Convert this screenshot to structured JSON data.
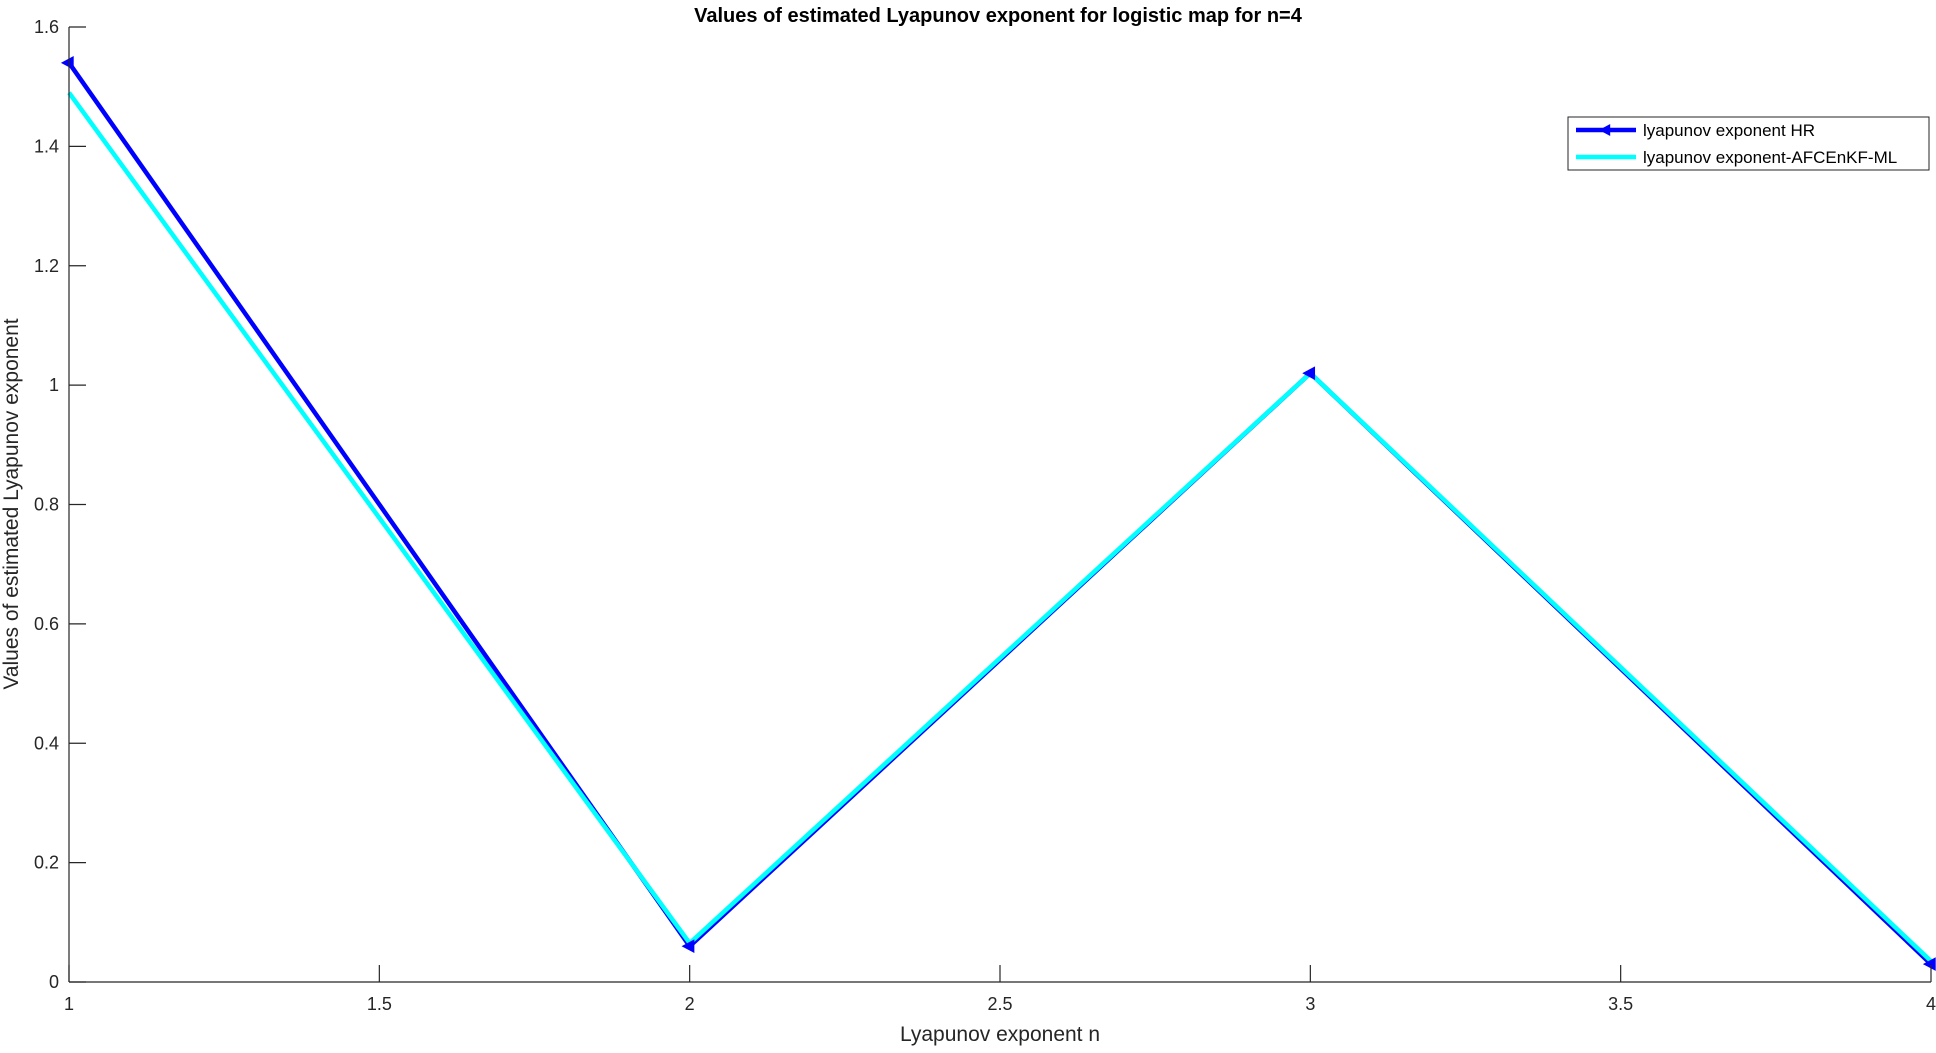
{
  "chart_data": {
    "type": "line",
    "title": "Values of estimated Lyapunov exponent for logistic map for n=4",
    "xlabel": "Lyapunov exponent n",
    "ylabel": "Values of estimated Lyapunov exponent",
    "xlim": [
      1,
      4
    ],
    "ylim": [
      0,
      1.6
    ],
    "xticks": [
      1,
      1.5,
      2,
      2.5,
      3,
      3.5,
      4
    ],
    "xtick_labels": [
      "1",
      "1.5",
      "2",
      "2.5",
      "3",
      "3.5",
      "4"
    ],
    "yticks": [
      0,
      0.2,
      0.4,
      0.6,
      0.8,
      1,
      1.2,
      1.4,
      1.6
    ],
    "ytick_labels": [
      "0",
      "0.2",
      "0.4",
      "0.6",
      "0.8",
      "1",
      "1.2",
      "1.4",
      "1.6"
    ],
    "grid": false,
    "legend_position": "top-right",
    "x": [
      1,
      2,
      3,
      4
    ],
    "series": [
      {
        "name": "lyapunov exponent HR",
        "values": [
          1.54,
          0.06,
          1.02,
          0.03
        ],
        "color": "#0000ff",
        "marker": "left-triangle"
      },
      {
        "name": "lyapunov exponent-AFCEnKF-ML",
        "values": [
          1.49,
          0.065,
          1.02,
          0.035
        ],
        "color": "#00ffff",
        "marker": "none"
      }
    ]
  }
}
